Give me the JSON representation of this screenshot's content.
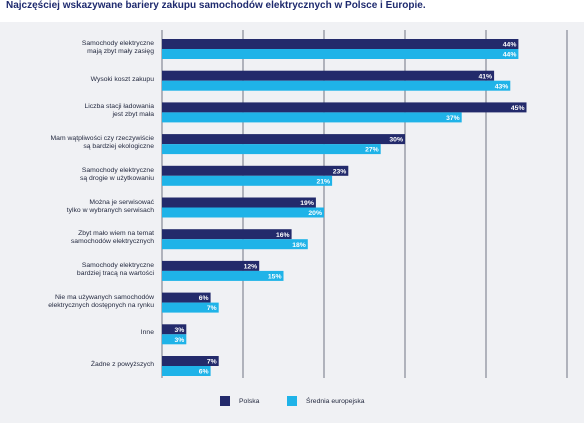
{
  "title": "Najczęściej wskazywane bariery zakupu samochodów elektrycznych w Polsce i Europie.",
  "chart_data": {
    "type": "bar",
    "orientation": "horizontal",
    "categories": [
      [
        "Samochody elektryczne",
        "mają zbyt mały zasięg"
      ],
      [
        "Wysoki koszt zakupu"
      ],
      [
        "Liczba stacji ładowania",
        "jest zbyt mała"
      ],
      [
        "Mam wątpliwości czy rzeczywiście",
        "są bardziej ekologiczne"
      ],
      [
        "Samochody elektryczne",
        "są drogie w użytkowaniu"
      ],
      [
        "Można je serwisować",
        "tylko w wybranych serwisach"
      ],
      [
        "Zbyt mało wiem na temat",
        "samochodów elektrycznych"
      ],
      [
        "Samochody elektryczne",
        "bardziej tracą na wartości"
      ],
      [
        "Nie ma używanych samochodów",
        "elektrycznych dostępnych na rynku"
      ],
      [
        "Inne"
      ],
      [
        "Żadne z powyższych"
      ]
    ],
    "series": [
      {
        "name": "Polska",
        "color": "#232a6b",
        "values": [
          44,
          41,
          45,
          30,
          23,
          19,
          16,
          12,
          6,
          3,
          7
        ],
        "labels": [
          "44%",
          "41%",
          "45%",
          "30%",
          "23%",
          "19%",
          "16%",
          "12%",
          "6%",
          "3%",
          "7%"
        ]
      },
      {
        "name": "Średnia europejska",
        "color": "#1fb3e8",
        "values": [
          44,
          43,
          37,
          27,
          21,
          20,
          18,
          15,
          7,
          3,
          6
        ],
        "labels": [
          "44%",
          "43%",
          "37%",
          "27%",
          "21%",
          "20%",
          "18%",
          "15%",
          "7%",
          "3%",
          "6%"
        ]
      }
    ],
    "xlim": [
      0,
      52
    ],
    "grid": true,
    "legend_position": "bottom"
  }
}
